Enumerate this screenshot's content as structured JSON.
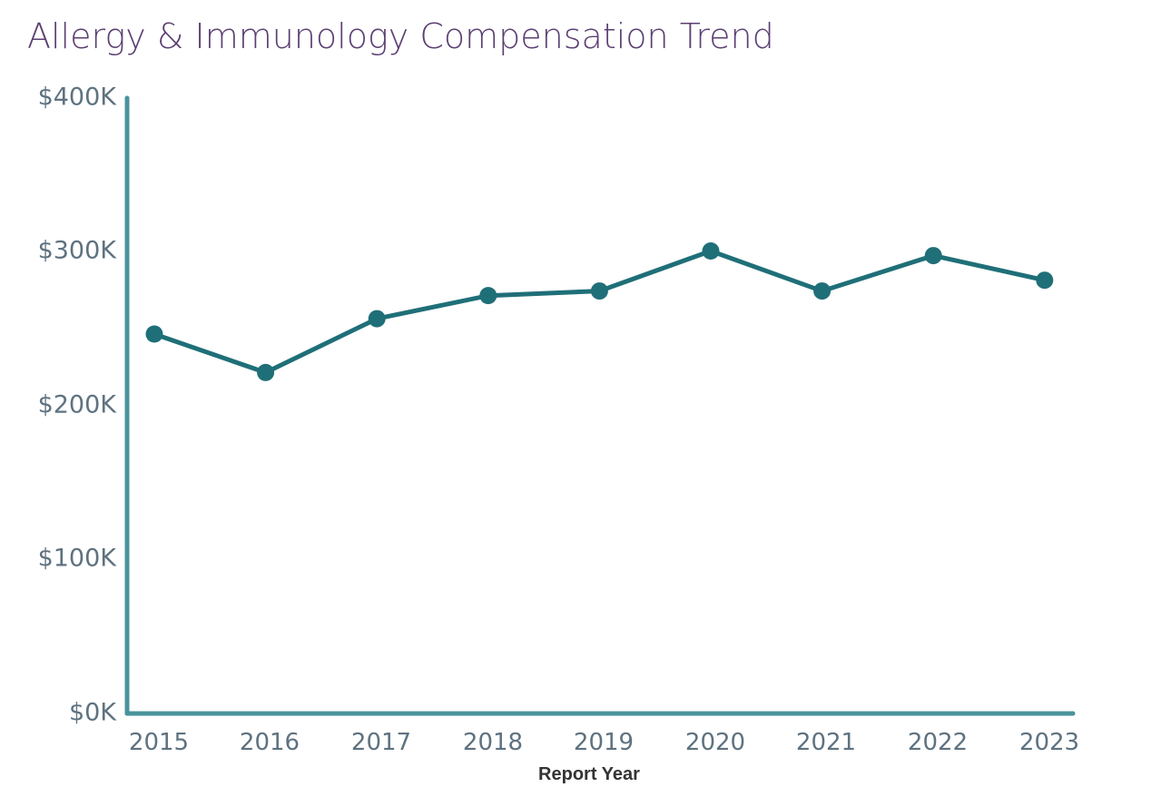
{
  "title": "Allergy & Immunology Compensation Trend",
  "colors": {
    "title": "#5b3f72",
    "axis": "#4a939c",
    "line": "#1f6f78",
    "tick_text": "#5e7280",
    "xlabel": "#333333"
  },
  "y_ticks": [
    "$0K",
    "$100K",
    "$200K",
    "$300K",
    "$400K"
  ],
  "x_ticks": [
    "2015",
    "2016",
    "2017",
    "2018",
    "2019",
    "2020",
    "2021",
    "2022",
    "2023"
  ],
  "xlabel": "Report Year",
  "chart_data": {
    "type": "line",
    "title": "Allergy & Immunology Compensation Trend",
    "xlabel": "Report Year",
    "ylabel": "",
    "categories": [
      "2015",
      "2016",
      "2017",
      "2018",
      "2019",
      "2020",
      "2021",
      "2022",
      "2023"
    ],
    "series": [
      {
        "name": "Compensation",
        "values": [
          246000,
          221000,
          256000,
          271000,
          274000,
          300000,
          274000,
          297000,
          281000
        ]
      }
    ],
    "ylim": [
      0,
      400000
    ],
    "y_tick_labels": [
      "$0K",
      "$100K",
      "$200K",
      "$300K",
      "$400K"
    ],
    "grid": false,
    "legend": "none",
    "markers": true
  }
}
